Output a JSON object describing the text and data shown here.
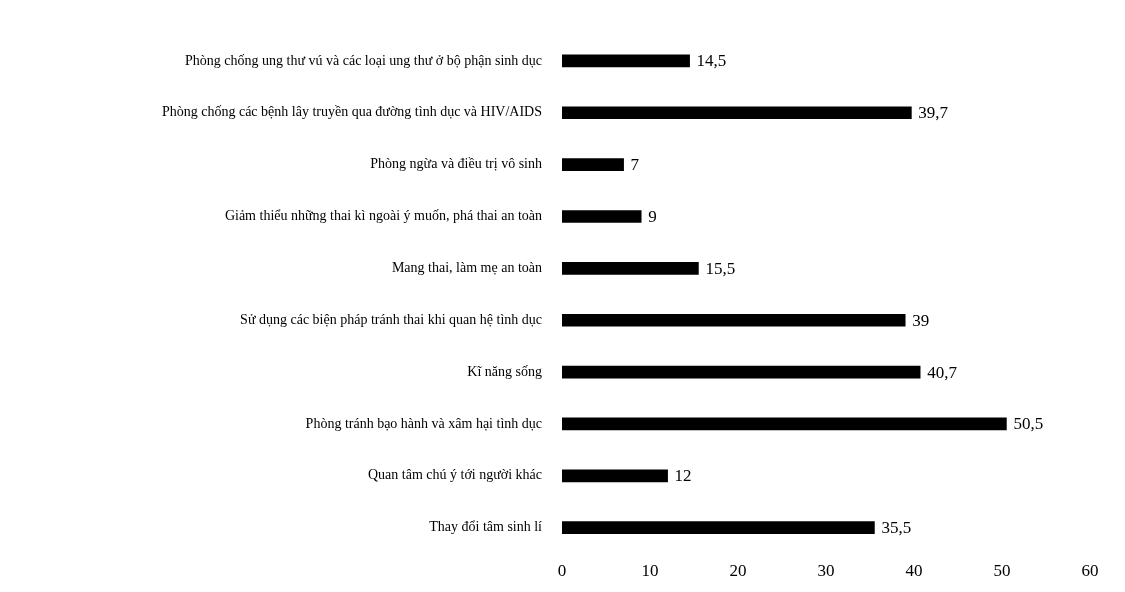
{
  "chart_data": {
    "type": "bar",
    "orientation": "horizontal",
    "categories": [
      "Phòng chống ung thư vú và các loại ung thư ở bộ phận sinh dục",
      "Phòng chống các bệnh lây truyền qua đường tình dục và HIV/AIDS",
      "Phòng ngừa và điều trị vô sinh",
      "Giảm thiểu những thai kì ngoài ý muốn, phá thai an toàn",
      "Mang thai, làm mẹ an toàn",
      "Sử dụng các biện pháp tránh thai khi quan hệ tình dục",
      "Kĩ năng sống",
      "Phòng tránh bạo hành và xâm hại tình dục",
      "Quan tâm chú ý tới người khác",
      "Thay đổi tâm sinh lí"
    ],
    "values": [
      14.5,
      39.7,
      7,
      9,
      15.5,
      39,
      40.7,
      50.5,
      12,
      35.5
    ],
    "value_labels": [
      "14,5",
      "39,7",
      "7",
      "9",
      "15,5",
      "39",
      "40,7",
      "50,5",
      "12",
      "35,5"
    ],
    "color": "#000000",
    "xlim": [
      0,
      60
    ],
    "xticks": [
      0,
      10,
      20,
      30,
      40,
      50,
      60
    ],
    "grid": false,
    "legend": false
  }
}
